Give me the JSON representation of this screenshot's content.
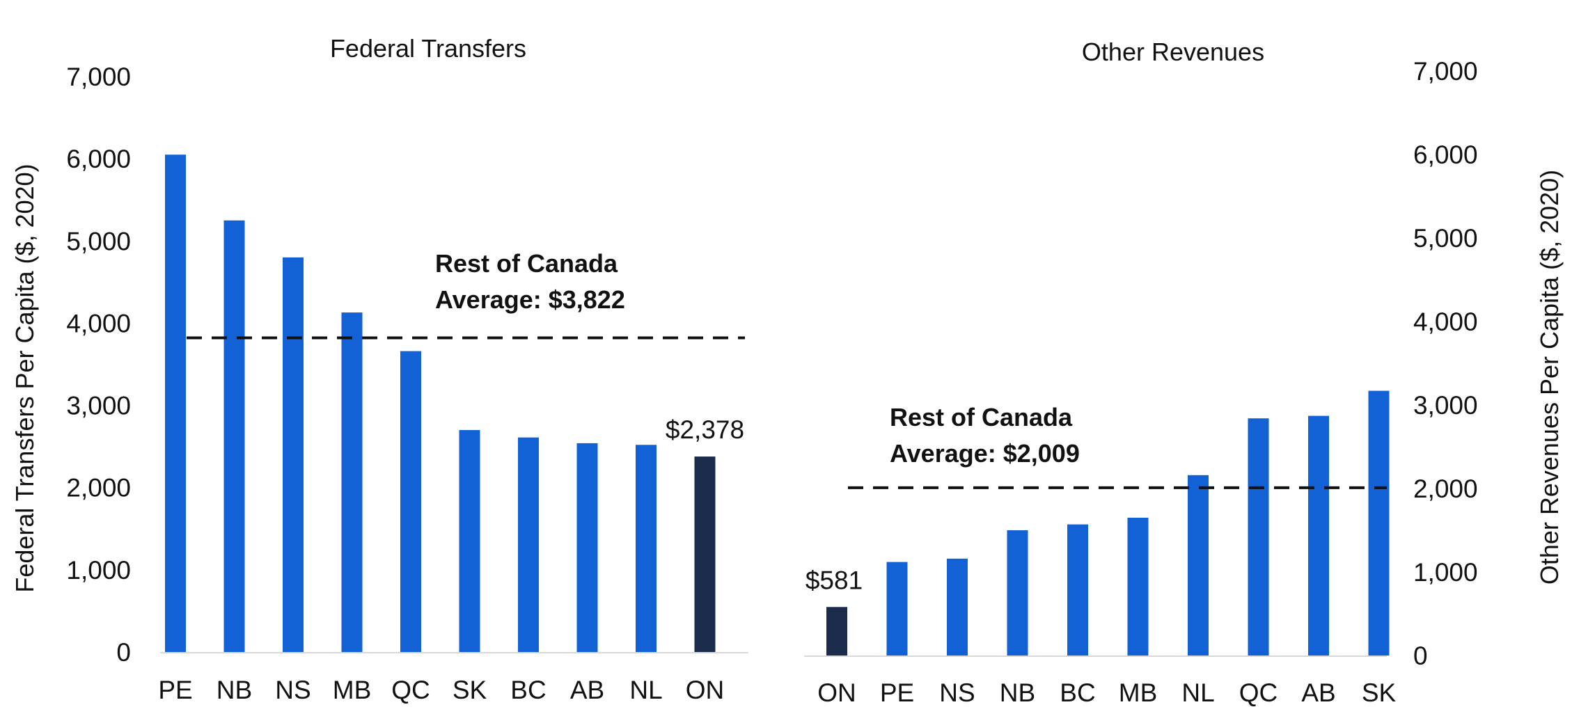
{
  "chart_data": [
    {
      "type": "bar",
      "title": "Federal Transfers",
      "ylabel": "Federal Transfers Per Capita ($, 2020)",
      "yaxis_side": "left",
      "ylim": [
        0,
        7000
      ],
      "yticks": [
        "0",
        "1,000",
        "2,000",
        "3,000",
        "4,000",
        "5,000",
        "6,000",
        "7,000"
      ],
      "categories": [
        "PE",
        "NB",
        "NS",
        "MB",
        "QC",
        "SK",
        "BC",
        "AB",
        "NL",
        "ON"
      ],
      "values": [
        6050,
        5250,
        4800,
        4130,
        3660,
        2700,
        2610,
        2540,
        2520,
        2378
      ],
      "highlight_category": "ON",
      "data_label": "$2,378",
      "reference_line": {
        "value": 3822,
        "label_line1": "Rest of Canada",
        "label_line2": " Average: $3,822"
      },
      "grid": false
    },
    {
      "type": "bar",
      "title": "Other Revenues",
      "ylabel": "Other Revenues Per Capita ($, 2020)",
      "yaxis_side": "right",
      "ylim": [
        0,
        7000
      ],
      "yticks": [
        "0",
        "1,000",
        "2,000",
        "3,000",
        "4,000",
        "5,000",
        "6,000",
        "7,000"
      ],
      "categories": [
        "ON",
        "PE",
        "NS",
        "NB",
        "BC",
        "MB",
        "NL",
        "QC",
        "AB",
        "SK"
      ],
      "values": [
        581,
        1120,
        1160,
        1500,
        1570,
        1650,
        2160,
        2840,
        2870,
        3170
      ],
      "highlight_category": "ON",
      "data_label": "$581",
      "reference_line": {
        "value": 2009,
        "label_line1": "Rest of Canada",
        "label_line2": "Average: $2,009"
      },
      "grid": false
    }
  ],
  "colors": {
    "bar": "#1262d6",
    "highlight": "#1b2b4b",
    "axis": "#d9d9d9",
    "text": "#111111"
  }
}
